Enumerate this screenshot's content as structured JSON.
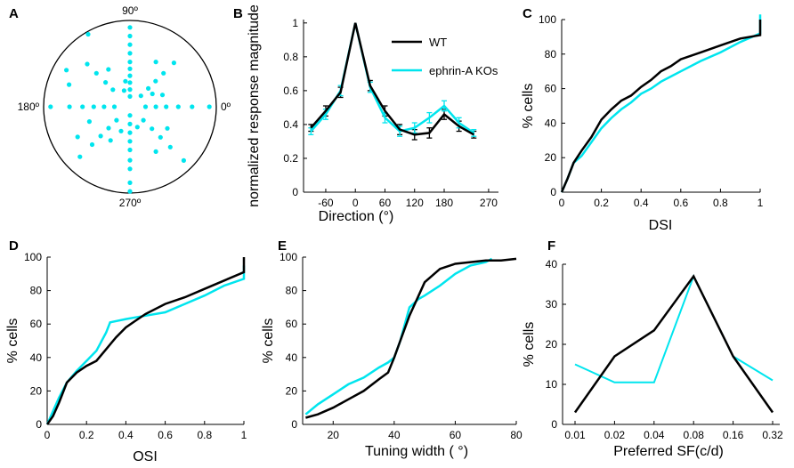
{
  "colors": {
    "wt": "#000000",
    "ko": "#00e5ee",
    "axis": "#000000"
  },
  "legend": {
    "wt": "WT",
    "ko": "ephrin-A KOs"
  },
  "chart_data": [
    {
      "panel": "A",
      "type": "scatter",
      "subtype": "polar",
      "angle_labels": {
        "top": "90º",
        "right": "0º",
        "bottom": "270º",
        "left": "180º"
      },
      "rmax": 1,
      "points": [
        [
          90,
          0.92
        ],
        [
          90,
          0.82
        ],
        [
          90,
          0.72
        ],
        [
          90,
          0.62
        ],
        [
          90,
          0.52
        ],
        [
          90,
          0.44
        ],
        [
          90,
          0.36
        ],
        [
          90,
          0.28
        ],
        [
          90,
          0.2
        ],
        [
          90,
          0.12
        ],
        [
          270,
          0.98
        ],
        [
          270,
          0.88
        ],
        [
          270,
          0.72
        ],
        [
          270,
          0.62
        ],
        [
          270,
          0.5
        ],
        [
          270,
          0.4
        ],
        [
          270,
          0.3
        ],
        [
          270,
          0.2
        ],
        [
          270,
          0.1
        ],
        [
          0,
          0.92
        ],
        [
          0,
          0.72
        ],
        [
          0,
          0.56
        ],
        [
          0,
          0.42
        ],
        [
          0,
          0.3
        ],
        [
          0,
          0.18
        ],
        [
          180,
          0.92
        ],
        [
          180,
          0.7
        ],
        [
          180,
          0.55
        ],
        [
          180,
          0.42
        ],
        [
          180,
          0.3
        ],
        [
          180,
          0.18
        ],
        [
          45,
          0.72
        ],
        [
          45,
          0.55
        ],
        [
          45,
          0.42
        ],
        [
          45,
          0.3
        ],
        [
          45,
          0.18
        ],
        [
          135,
          0.7
        ],
        [
          135,
          0.55
        ],
        [
          135,
          0.4
        ],
        [
          135,
          0.28
        ],
        [
          225,
          0.82
        ],
        [
          225,
          0.62
        ],
        [
          225,
          0.48
        ],
        [
          225,
          0.35
        ],
        [
          225,
          0.22
        ],
        [
          315,
          0.88
        ],
        [
          315,
          0.66
        ],
        [
          315,
          0.5
        ],
        [
          315,
          0.36
        ],
        [
          315,
          0.22
        ],
        [
          120,
          0.97
        ],
        [
          120,
          0.5
        ],
        [
          60,
          0.6
        ],
        [
          150,
          0.85
        ],
        [
          160,
          0.75
        ],
        [
          200,
          0.5
        ],
        [
          210,
          0.7
        ],
        [
          240,
          0.45
        ],
        [
          300,
          0.6
        ],
        [
          330,
          0.5
        ],
        [
          20,
          0.4
        ],
        [
          30,
          0.3
        ],
        [
          100,
          0.3
        ],
        [
          110,
          0.2
        ],
        [
          250,
          0.3
        ],
        [
          290,
          0.25
        ]
      ]
    },
    {
      "panel": "B",
      "type": "line",
      "xlabel": "Direction (°)",
      "ylabel": "normalized response magnitude",
      "xlim": [
        -105,
        290
      ],
      "ylim": [
        0,
        1.02
      ],
      "xticks": [
        -60,
        0,
        60,
        120,
        180,
        270
      ],
      "yticks": [
        0,
        0.2,
        0.4,
        0.6,
        0.8,
        1
      ],
      "x": [
        -90,
        -60,
        -30,
        0,
        30,
        60,
        90,
        120,
        150,
        180,
        210,
        240
      ],
      "series": [
        {
          "name": "WT",
          "values": [
            0.38,
            0.48,
            0.59,
            1.0,
            0.63,
            0.48,
            0.37,
            0.34,
            0.35,
            0.46,
            0.39,
            0.34
          ],
          "err": [
            0.02,
            0.03,
            0.03,
            0.0,
            0.03,
            0.03,
            0.03,
            0.03,
            0.03,
            0.03,
            0.03,
            0.02
          ]
        },
        {
          "name": "ephrin-A KOs",
          "values": [
            0.36,
            0.46,
            0.6,
            1.0,
            0.62,
            0.44,
            0.36,
            0.38,
            0.44,
            0.51,
            0.41,
            0.35
          ],
          "err": [
            0.02,
            0.03,
            0.03,
            0.0,
            0.03,
            0.03,
            0.03,
            0.03,
            0.03,
            0.03,
            0.03,
            0.02
          ]
        }
      ]
    },
    {
      "panel": "C",
      "type": "line",
      "subtype": "cumulative",
      "xlabel": "DSI",
      "ylabel": "% cells",
      "xlim": [
        0,
        1
      ],
      "ylim": [
        0,
        100
      ],
      "xticks": [
        0,
        0.2,
        0.4,
        0.6,
        0.8,
        1
      ],
      "yticks": [
        0,
        20,
        40,
        60,
        80,
        100
      ],
      "series": [
        {
          "name": "WT",
          "x": [
            0,
            0.03,
            0.06,
            0.1,
            0.15,
            0.2,
            0.25,
            0.3,
            0.35,
            0.4,
            0.45,
            0.5,
            0.55,
            0.6,
            0.7,
            0.8,
            0.9,
            1.0,
            1.0
          ],
          "values": [
            0,
            8,
            17,
            24,
            32,
            42,
            48,
            53,
            56,
            61,
            65,
            70,
            73,
            77,
            81,
            85,
            89,
            91,
            100
          ]
        },
        {
          "name": "ephrin-A KOs",
          "x": [
            0,
            0.03,
            0.06,
            0.1,
            0.15,
            0.2,
            0.25,
            0.3,
            0.35,
            0.4,
            0.45,
            0.5,
            0.55,
            0.6,
            0.7,
            0.8,
            0.9,
            1.0,
            1.0
          ],
          "values": [
            0,
            8,
            17,
            21,
            29,
            37,
            43,
            48,
            52,
            57,
            60,
            64,
            67,
            70,
            76,
            81,
            87,
            92,
            103
          ]
        }
      ]
    },
    {
      "panel": "D",
      "type": "line",
      "subtype": "cumulative",
      "xlabel": "OSI",
      "ylabel": "% cells",
      "xlim": [
        0,
        1
      ],
      "ylim": [
        0,
        100
      ],
      "xticks": [
        0,
        0.2,
        0.4,
        0.6,
        0.8,
        1
      ],
      "yticks": [
        0,
        20,
        40,
        60,
        80,
        100
      ],
      "series": [
        {
          "name": "WT",
          "x": [
            0,
            0.03,
            0.06,
            0.1,
            0.15,
            0.2,
            0.25,
            0.3,
            0.35,
            0.4,
            0.45,
            0.5,
            0.6,
            0.7,
            0.8,
            0.9,
            1.0,
            1.0
          ],
          "values": [
            0,
            5,
            13,
            25,
            31,
            35,
            38,
            45,
            52,
            58,
            62,
            66,
            72,
            76,
            81,
            86,
            91,
            100
          ]
        },
        {
          "name": "ephrin-A KOs",
          "x": [
            0,
            0.03,
            0.06,
            0.1,
            0.15,
            0.2,
            0.25,
            0.3,
            0.32,
            0.4,
            0.45,
            0.5,
            0.6,
            0.7,
            0.8,
            0.9,
            1.0,
            1.0
          ],
          "values": [
            0,
            8,
            16,
            25,
            32,
            38,
            44,
            55,
            61,
            63,
            64,
            65,
            67,
            72,
            77,
            83,
            87,
            95
          ]
        }
      ]
    },
    {
      "panel": "E",
      "type": "line",
      "subtype": "cumulative",
      "xlabel": "Tuning width ( °)",
      "ylabel": "% cells",
      "xlim": [
        10,
        80
      ],
      "ylim": [
        0,
        100
      ],
      "xticks": [
        20,
        40,
        60,
        80
      ],
      "yticks": [
        0,
        20,
        40,
        60,
        80,
        100
      ],
      "series": [
        {
          "name": "WT",
          "x": [
            11,
            15,
            20,
            25,
            30,
            35,
            38,
            40,
            42,
            45,
            48,
            50,
            55,
            60,
            65,
            70,
            75,
            80
          ],
          "values": [
            4,
            6,
            10,
            15,
            20,
            27,
            31,
            40,
            50,
            65,
            77,
            85,
            93,
            96,
            97,
            98,
            98,
            99
          ]
        },
        {
          "name": "ephrin-A KOs",
          "x": [
            11,
            15,
            20,
            25,
            30,
            35,
            38,
            40,
            42,
            45,
            48,
            50,
            55,
            60,
            65,
            70,
            72
          ],
          "values": [
            6,
            12,
            18,
            24,
            28,
            34,
            37,
            40,
            50,
            70,
            75,
            77,
            83,
            90,
            95,
            97,
            99
          ]
        }
      ]
    },
    {
      "panel": "F",
      "type": "line",
      "xlabel": "Preferred SF(c/d)",
      "ylabel": "% cells",
      "ylim": [
        0,
        40
      ],
      "categories": [
        "0.01",
        "0.02",
        "0.04",
        "0.08",
        "0.16",
        "0.32"
      ],
      "yticks": [
        0,
        10,
        20,
        30,
        40
      ],
      "series": [
        {
          "name": "WT",
          "values": [
            3,
            17,
            23.5,
            37,
            17,
            3
          ]
        },
        {
          "name": "ephrin-A KOs",
          "values": [
            15,
            10.5,
            10.5,
            37,
            17,
            11
          ]
        }
      ]
    }
  ]
}
